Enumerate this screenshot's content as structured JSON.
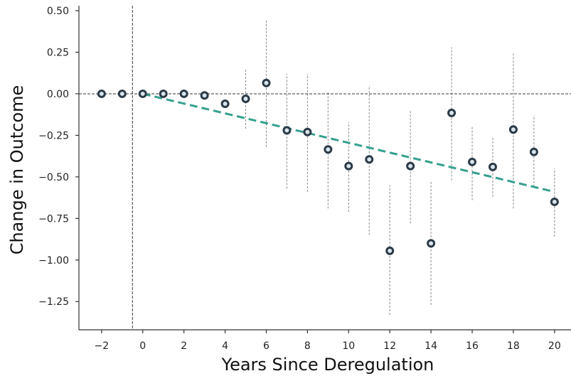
{
  "chart_data": {
    "type": "scatter",
    "xlabel": "Years Since Deregulation",
    "ylabel": "Change in Outcome",
    "xlim": [
      -3.1,
      20.8
    ],
    "ylim": [
      -1.42,
      0.53
    ],
    "x_ticks": [
      -2,
      0,
      2,
      4,
      6,
      8,
      10,
      12,
      14,
      16,
      18,
      20
    ],
    "x_tick_labels": [
      "−2",
      "0",
      "2",
      "4",
      "6",
      "8",
      "10",
      "12",
      "14",
      "16",
      "18",
      "20"
    ],
    "y_ticks": [
      0.5,
      0.25,
      0.0,
      -0.25,
      -0.5,
      -0.75,
      -1.0,
      -1.25
    ],
    "y_tick_labels": [
      "0.50",
      "0.25",
      "0.00",
      "−0.25",
      "−0.50",
      "−0.75",
      "−1.00",
      "−1.25"
    ],
    "reference_lines": {
      "horizontal_y": 0.0,
      "vertical_x": -0.5
    },
    "points": [
      {
        "x": -2,
        "y": 0.0
      },
      {
        "x": -1,
        "y": 0.0
      },
      {
        "x": 0,
        "y": 0.0
      },
      {
        "x": 1,
        "y": 0.0
      },
      {
        "x": 2,
        "y": 0.0
      },
      {
        "x": 3,
        "y": -0.01
      },
      {
        "x": 4,
        "y": -0.06
      },
      {
        "x": 5,
        "y": -0.03,
        "ci": [
          -0.21,
          0.15
        ]
      },
      {
        "x": 6,
        "y": 0.065,
        "ci": [
          -0.32,
          0.44
        ]
      },
      {
        "x": 7,
        "y": -0.22,
        "ci": [
          -0.57,
          0.12
        ]
      },
      {
        "x": 8,
        "y": -0.23,
        "ci": [
          -0.59,
          0.12
        ]
      },
      {
        "x": 9,
        "y": -0.335,
        "ci": [
          -0.69,
          0.01
        ]
      },
      {
        "x": 10,
        "y": -0.435,
        "ci": [
          -0.71,
          -0.17
        ]
      },
      {
        "x": 11,
        "y": -0.395,
        "ci": [
          -0.85,
          0.05
        ]
      },
      {
        "x": 12,
        "y": -0.945,
        "ci": [
          -1.33,
          -0.55
        ]
      },
      {
        "x": 13,
        "y": -0.435,
        "ci": [
          -0.78,
          -0.1
        ]
      },
      {
        "x": 14,
        "y": -0.9,
        "ci": [
          -1.27,
          -0.53
        ]
      },
      {
        "x": 15,
        "y": -0.115,
        "ci": [
          -0.52,
          0.28
        ]
      },
      {
        "x": 16,
        "y": -0.41,
        "ci": [
          -0.64,
          -0.2
        ]
      },
      {
        "x": 17,
        "y": -0.44,
        "ci": [
          -0.62,
          -0.26
        ]
      },
      {
        "x": 18,
        "y": -0.215,
        "ci": [
          -0.69,
          0.25
        ]
      },
      {
        "x": 19,
        "y": -0.35,
        "ci": [
          -0.56,
          -0.13
        ]
      },
      {
        "x": 20,
        "y": -0.65,
        "ci": [
          -0.86,
          -0.45
        ]
      }
    ],
    "trend_line": {
      "x": [
        0,
        20
      ],
      "y": [
        0.0,
        -0.59
      ]
    },
    "colors": {
      "point_edge": "#2b3a47",
      "point_fill": "#d9e4ea",
      "trend": "#35a08f",
      "errorbar": "#8a8a8a",
      "reference": "#333333",
      "axis": "#333333"
    }
  }
}
